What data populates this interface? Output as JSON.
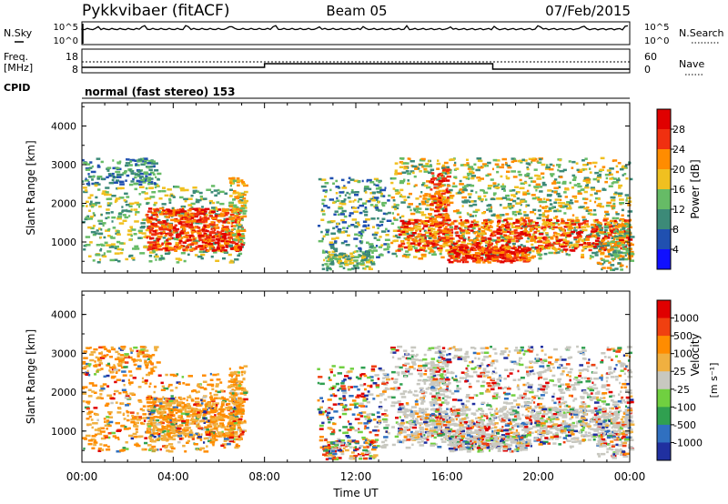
{
  "header": {
    "station": "Pykkvibaer (fitACF)",
    "beam": "Beam 05",
    "date": "07/Feb/2015"
  },
  "strip": {
    "nsky_label": "N.Sky",
    "nsearch_label": "N.Search",
    "noise_ticks_left": [
      "10^5",
      "10^0"
    ],
    "noise_ticks_right": [
      "10^5",
      "10^0"
    ],
    "freq_label_1": "Freq.",
    "freq_label_2": "[MHz]",
    "freq_ticks": [
      "18",
      "8"
    ],
    "nave_label": "Nave",
    "nave_ticks": [
      "60",
      "0"
    ],
    "cpid_label": "CPID",
    "cpid_text": "normal (fast stereo) 153"
  },
  "chart_data": [
    {
      "type": "heatmap",
      "name": "power-panel",
      "ylabel": "Slant Range [km]",
      "yticks": [
        "1000",
        "2000",
        "3000",
        "4000"
      ],
      "ylim": [
        200,
        4600
      ],
      "xlim_hours": [
        0,
        24
      ],
      "colorbar_title": "Power [dB]",
      "colorbar_ticks": [
        "4",
        "8",
        "12",
        "16",
        "20",
        "24",
        "28"
      ],
      "colorbar_levels": [
        "#1010ff",
        "#2050b0",
        "#3c8a78",
        "#66bb66",
        "#f0c020",
        "#ff8c00",
        "#f03010",
        "#e00000"
      ]
    },
    {
      "type": "heatmap",
      "name": "velocity-panel",
      "ylabel": "Slant Range [km]",
      "yticks": [
        "1000",
        "2000",
        "3000",
        "4000"
      ],
      "ylim": [
        200,
        4600
      ],
      "xlim_hours": [
        0,
        24
      ],
      "colorbar_title": "Velocity",
      "colorbar_unit": "[m s⁻¹]",
      "colorbar_ticks": [
        "1000",
        "500",
        "100",
        "25",
        "-25",
        "-100",
        "-500",
        "-1000"
      ],
      "colorbar_levels": [
        "#2030a0",
        "#3070c0",
        "#30a050",
        "#70d040",
        "#c8c8c0",
        "#f0b040",
        "#ff8c00",
        "#f04010",
        "#e00000"
      ]
    }
  ],
  "xaxis": {
    "ticks": [
      "00:00",
      "04:00",
      "08:00",
      "12:00",
      "16:00",
      "20:00",
      "00:00"
    ],
    "label": "Time UT"
  }
}
